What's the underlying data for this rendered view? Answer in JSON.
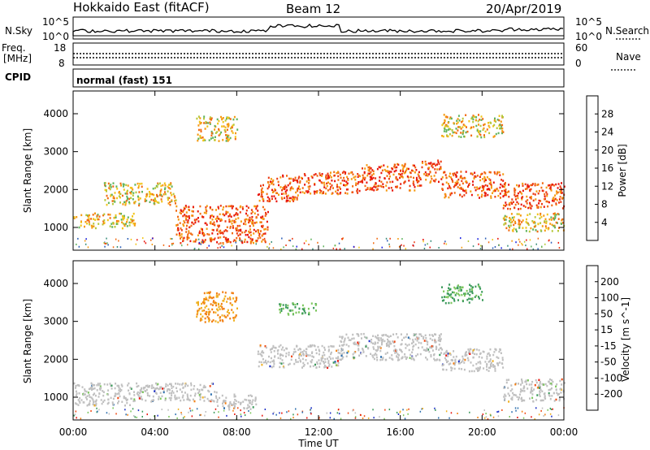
{
  "header": {
    "title": "Hokkaido East (fitACF)",
    "beam": "Beam 12",
    "date": "20/Apr/2019"
  },
  "panels": {
    "nsky": {
      "label": "N.Sky",
      "tick_top": "10^5",
      "tick_bottom": "10^0"
    },
    "nsearch": {
      "label": "N.Search",
      "tick_top": "10^5",
      "tick_bottom": "10^0"
    },
    "freq": {
      "label_line1": "Freq.",
      "label_line2": "[MHz]",
      "tick_top": "18",
      "tick_bottom": "8"
    },
    "nave": {
      "label": "Nave",
      "tick_top": "60",
      "tick_bottom": "0"
    },
    "cpid": {
      "label": "CPID",
      "value": "normal (fast) 151"
    }
  },
  "chart_data": [
    {
      "type": "heatmap",
      "name": "power",
      "xlabel": "",
      "ylabel": "Slant Range [km]",
      "xlim": [
        0,
        24
      ],
      "ylim": [
        400,
        4600
      ],
      "y_ticks": [
        "1000",
        "2000",
        "3000",
        "4000"
      ],
      "colorbar": {
        "label": "Power [dB]",
        "range": [
          0,
          32
        ],
        "ticks": [
          "4",
          "8",
          "12",
          "16",
          "20",
          "24",
          "28"
        ],
        "colors": [
          "#1a22e0",
          "#2c5fb8",
          "#3a8e7a",
          "#5fb35e",
          "#b6c83a",
          "#f2c418",
          "#f59a10",
          "#f26a10",
          "#ec3a12",
          "#e8150c"
        ]
      },
      "bands": [
        {
          "x": [
            0.0,
            3.0
          ],
          "y": [
            1000,
            1400
          ],
          "level": "mid"
        },
        {
          "x": [
            1.5,
            5.0
          ],
          "y": [
            1600,
            2200
          ],
          "level": "mid"
        },
        {
          "x": [
            5.0,
            9.5
          ],
          "y": [
            600,
            1600
          ],
          "level": "high"
        },
        {
          "x": [
            6.0,
            8.0
          ],
          "y": [
            3300,
            3950
          ],
          "level": "mid"
        },
        {
          "x": [
            9.0,
            11.0
          ],
          "y": [
            1700,
            2400
          ],
          "level": "high"
        },
        {
          "x": [
            11.0,
            14.0
          ],
          "y": [
            1900,
            2500
          ],
          "level": "high"
        },
        {
          "x": [
            14.0,
            17.0
          ],
          "y": [
            2000,
            2700
          ],
          "level": "high"
        },
        {
          "x": [
            17.0,
            18.0
          ],
          "y": [
            2200,
            2800
          ],
          "level": "high"
        },
        {
          "x": [
            18.0,
            21.0
          ],
          "y": [
            1800,
            2500
          ],
          "level": "high"
        },
        {
          "x": [
            21.0,
            24.0
          ],
          "y": [
            1500,
            2200
          ],
          "level": "high"
        },
        {
          "x": [
            21.0,
            24.0
          ],
          "y": [
            900,
            1400
          ],
          "level": "mid"
        },
        {
          "x": [
            18.0,
            21.0
          ],
          "y": [
            3400,
            4000
          ],
          "level": "mid"
        }
      ]
    },
    {
      "type": "heatmap",
      "name": "velocity",
      "xlabel": "Time UT",
      "ylabel": "Slant Range [km]",
      "xlim": [
        0,
        24
      ],
      "ylim": [
        400,
        4600
      ],
      "x_ticks": [
        "00:00",
        "04:00",
        "08:00",
        "12:00",
        "16:00",
        "20:00",
        "00:00"
      ],
      "y_ticks": [
        "1000",
        "2000",
        "3000",
        "4000"
      ],
      "colorbar": {
        "label": "Velocity [m s^-1]",
        "ticks": [
          "200",
          "100",
          "50",
          "15",
          "-15",
          "-50",
          "-100",
          "-200"
        ],
        "colors": [
          "#1c2fc6",
          "#2c6fae",
          "#3a9a5a",
          "#7cc65c",
          "#c0c0c0",
          "#f0b020",
          "#f28014",
          "#f04a14",
          "#e8150c"
        ]
      },
      "bands": [
        {
          "x": [
            0.0,
            3.0
          ],
          "y": [
            800,
            1400
          ],
          "level": "ground"
        },
        {
          "x": [
            3.0,
            7.0
          ],
          "y": [
            900,
            1400
          ],
          "level": "ground"
        },
        {
          "x": [
            7.0,
            9.0
          ],
          "y": [
            700,
            1100
          ],
          "level": "ground"
        },
        {
          "x": [
            9.0,
            13.0
          ],
          "y": [
            1800,
            2400
          ],
          "level": "ground"
        },
        {
          "x": [
            13.0,
            18.0
          ],
          "y": [
            2000,
            2700
          ],
          "level": "ground"
        },
        {
          "x": [
            18.0,
            21.0
          ],
          "y": [
            1700,
            2300
          ],
          "level": "ground"
        },
        {
          "x": [
            21.0,
            24.0
          ],
          "y": [
            900,
            1500
          ],
          "level": "ground"
        },
        {
          "x": [
            18.0,
            20.0
          ],
          "y": [
            3500,
            4000
          ],
          "level": "positive"
        },
        {
          "x": [
            10.0,
            12.0
          ],
          "y": [
            3200,
            3500
          ],
          "level": "positive"
        },
        {
          "x": [
            6.0,
            8.0
          ],
          "y": [
            3000,
            3800
          ],
          "level": "negative"
        }
      ]
    }
  ]
}
